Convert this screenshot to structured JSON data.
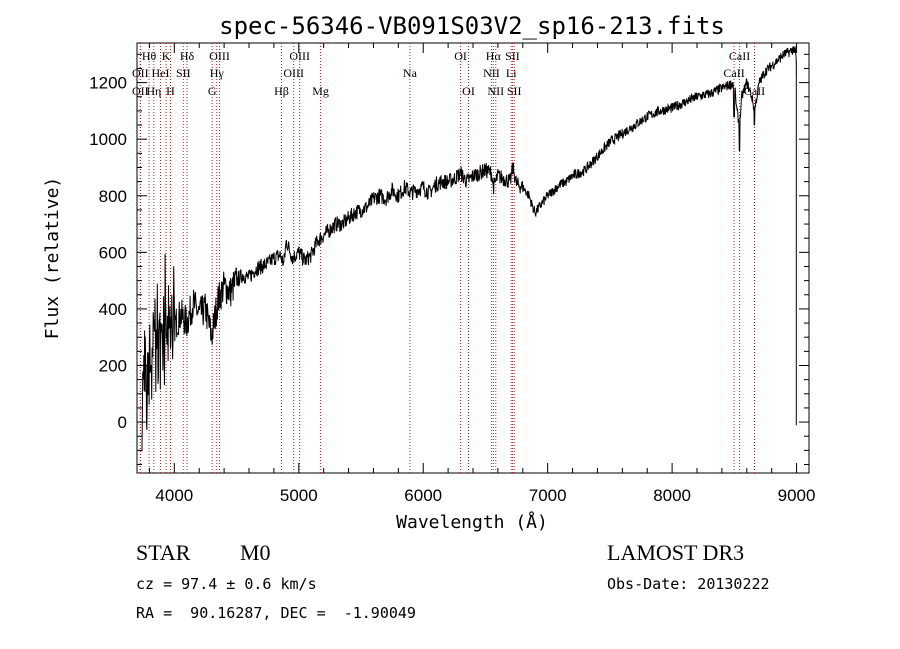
{
  "chart_data": {
    "type": "line",
    "title": "spec-56346-VB091S03V2_sp16-213.fits",
    "xlabel": "Wavelength (Å)",
    "ylabel": "Flux (relative)",
    "xlim": [
      3700,
      9100
    ],
    "ylim": [
      -180,
      1340
    ],
    "xticks": [
      4000,
      5000,
      6000,
      7000,
      8000,
      9000
    ],
    "yticks": [
      0,
      200,
      400,
      600,
      800,
      1000,
      1200
    ],
    "xtick_labels": [
      "4000",
      "5000",
      "6000",
      "7000",
      "8000",
      "9000"
    ],
    "ytick_labels": [
      "0",
      "200",
      "400",
      "600",
      "800",
      "1000",
      "1200"
    ],
    "line_color": "#000000",
    "marker_color": "#b22222",
    "series": [
      {
        "name": "flux",
        "x": [
          3740,
          3760,
          3780,
          3800,
          3820,
          3840,
          3860,
          3880,
          3900,
          3920,
          3950,
          3980,
          4000,
          4050,
          4100,
          4150,
          4200,
          4250,
          4300,
          4330,
          4350,
          4400,
          4450,
          4500,
          4550,
          4600,
          4650,
          4700,
          4750,
          4800,
          4850,
          4880,
          4900,
          4950,
          5000,
          5050,
          5100,
          5150,
          5200,
          5250,
          5300,
          5350,
          5400,
          5450,
          5500,
          5550,
          5600,
          5650,
          5700,
          5750,
          5800,
          5850,
          5900,
          5950,
          6000,
          6050,
          6100,
          6150,
          6200,
          6250,
          6300,
          6350,
          6400,
          6450,
          6500,
          6550,
          6563,
          6600,
          6650,
          6700,
          6720,
          6750,
          6800,
          6850,
          6880,
          6900,
          6950,
          7000,
          7050,
          7100,
          7150,
          7200,
          7300,
          7400,
          7500,
          7600,
          7700,
          7800,
          7900,
          8000,
          8100,
          8200,
          8300,
          8400,
          8450,
          8500,
          8520,
          8542,
          8560,
          8600,
          8640,
          8662,
          8700,
          8750,
          8800,
          8850,
          8900,
          8950,
          8980,
          8995,
          9000
        ],
        "y": [
          100,
          250,
          60,
          320,
          150,
          380,
          250,
          300,
          200,
          350,
          300,
          380,
          340,
          380,
          350,
          420,
          380,
          400,
          300,
          380,
          430,
          480,
          460,
          500,
          520,
          510,
          540,
          550,
          560,
          580,
          590,
          560,
          640,
          580,
          600,
          570,
          590,
          640,
          660,
          680,
          700,
          700,
          720,
          740,
          750,
          760,
          790,
          800,
          790,
          820,
          800,
          830,
          810,
          820,
          830,
          810,
          840,
          850,
          850,
          860,
          880,
          850,
          870,
          880,
          890,
          880,
          830,
          870,
          860,
          850,
          900,
          840,
          830,
          800,
          760,
          740,
          770,
          800,
          820,
          840,
          850,
          870,
          890,
          940,
          990,
          1020,
          1050,
          1080,
          1100,
          1110,
          1130,
          1150,
          1160,
          1180,
          1190,
          1200,
          1100,
          1050,
          1150,
          1200,
          1150,
          1100,
          1200,
          1240,
          1260,
          1280,
          1300,
          1310,
          1320,
          1300,
          1200
        ]
      }
    ],
    "lines": [
      {
        "x": 3797,
        "label": "Hθ",
        "row": 1
      },
      {
        "x": 3727,
        "label": "OII",
        "row": 2
      },
      {
        "x": 3727,
        "label": "OII",
        "row": 3
      },
      {
        "x": 3835,
        "label": "Hη",
        "row": 3
      },
      {
        "x": 3889,
        "label": "HeI",
        "row": 2
      },
      {
        "x": 3934,
        "label": "K",
        "row": 1
      },
      {
        "x": 3969,
        "label": "H",
        "row": 3
      },
      {
        "x": 4072,
        "label": "SII",
        "row": 2
      },
      {
        "x": 4102,
        "label": "Hδ",
        "row": 1
      },
      {
        "x": 4304,
        "label": "G",
        "row": 3
      },
      {
        "x": 4341,
        "label": "Hγ",
        "row": 2
      },
      {
        "x": 4363,
        "label": "OIII",
        "row": 1
      },
      {
        "x": 4861,
        "label": "Hβ",
        "row": 3
      },
      {
        "x": 4959,
        "label": "OIII",
        "row": 2
      },
      {
        "x": 5007,
        "label": "OIII",
        "row": 1
      },
      {
        "x": 5175,
        "label": "Mg",
        "row": 3
      },
      {
        "x": 5893,
        "label": "Na",
        "row": 2
      },
      {
        "x": 6300,
        "label": "OI",
        "row": 1
      },
      {
        "x": 6364,
        "label": "OI",
        "row": 3
      },
      {
        "x": 6548,
        "label": "NII",
        "row": 2
      },
      {
        "x": 6563,
        "label": "Hα",
        "row": 1
      },
      {
        "x": 6583,
        "label": "NII",
        "row": 3
      },
      {
        "x": 6707,
        "label": "Li",
        "row": 2
      },
      {
        "x": 6717,
        "label": "SII",
        "row": 1
      },
      {
        "x": 6731,
        "label": "SII",
        "row": 3
      },
      {
        "x": 8498,
        "label": "CaII",
        "row": 2
      },
      {
        "x": 8542,
        "label": "CaII",
        "row": 1
      },
      {
        "x": 8662,
        "label": "CaII",
        "row": 3
      }
    ]
  },
  "info": {
    "object_class": "STAR",
    "subclass": "M0",
    "survey": "LAMOST DR3",
    "cz": "cz = 97.4 ± 0.6 km/s",
    "obs_date": "Obs-Date: 20130222",
    "coords": "RA =  90.16287, DEC =  -1.90049"
  }
}
